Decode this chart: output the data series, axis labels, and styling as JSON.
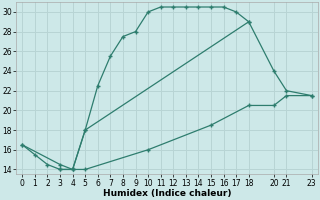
{
  "xlabel": "Humidex (Indice chaleur)",
  "xlim": [
    -0.5,
    23.5
  ],
  "ylim": [
    13.5,
    31.0
  ],
  "yticks": [
    14,
    16,
    18,
    20,
    22,
    24,
    26,
    28,
    30
  ],
  "xticks": [
    0,
    1,
    2,
    3,
    4,
    5,
    6,
    7,
    8,
    9,
    10,
    11,
    12,
    13,
    14,
    15,
    16,
    17,
    18,
    20,
    21,
    23
  ],
  "bg_color": "#cde8e8",
  "line_color": "#2e7d6e",
  "grid_color": "#b8d4d4",
  "line1_x": [
    0,
    1,
    2,
    3,
    4,
    5,
    6,
    7,
    8,
    9,
    10,
    11,
    12,
    13,
    14,
    15,
    16,
    17,
    18
  ],
  "line1_y": [
    16.5,
    15.5,
    14.5,
    14.0,
    14.0,
    18.0,
    22.5,
    25.5,
    27.5,
    28.0,
    30.0,
    30.5,
    30.5,
    30.5,
    30.5,
    30.5,
    30.5,
    30.0,
    29.0
  ],
  "line2_x": [
    3,
    4,
    5,
    18,
    20,
    21,
    23
  ],
  "line2_y": [
    14.0,
    14.0,
    18.0,
    29.0,
    24.0,
    22.0,
    21.5
  ],
  "line3_x": [
    0,
    3,
    4,
    5,
    10,
    15,
    18,
    20,
    21,
    23
  ],
  "line3_y": [
    16.5,
    14.5,
    14.0,
    14.0,
    16.0,
    18.5,
    20.5,
    20.5,
    21.5,
    21.5
  ]
}
